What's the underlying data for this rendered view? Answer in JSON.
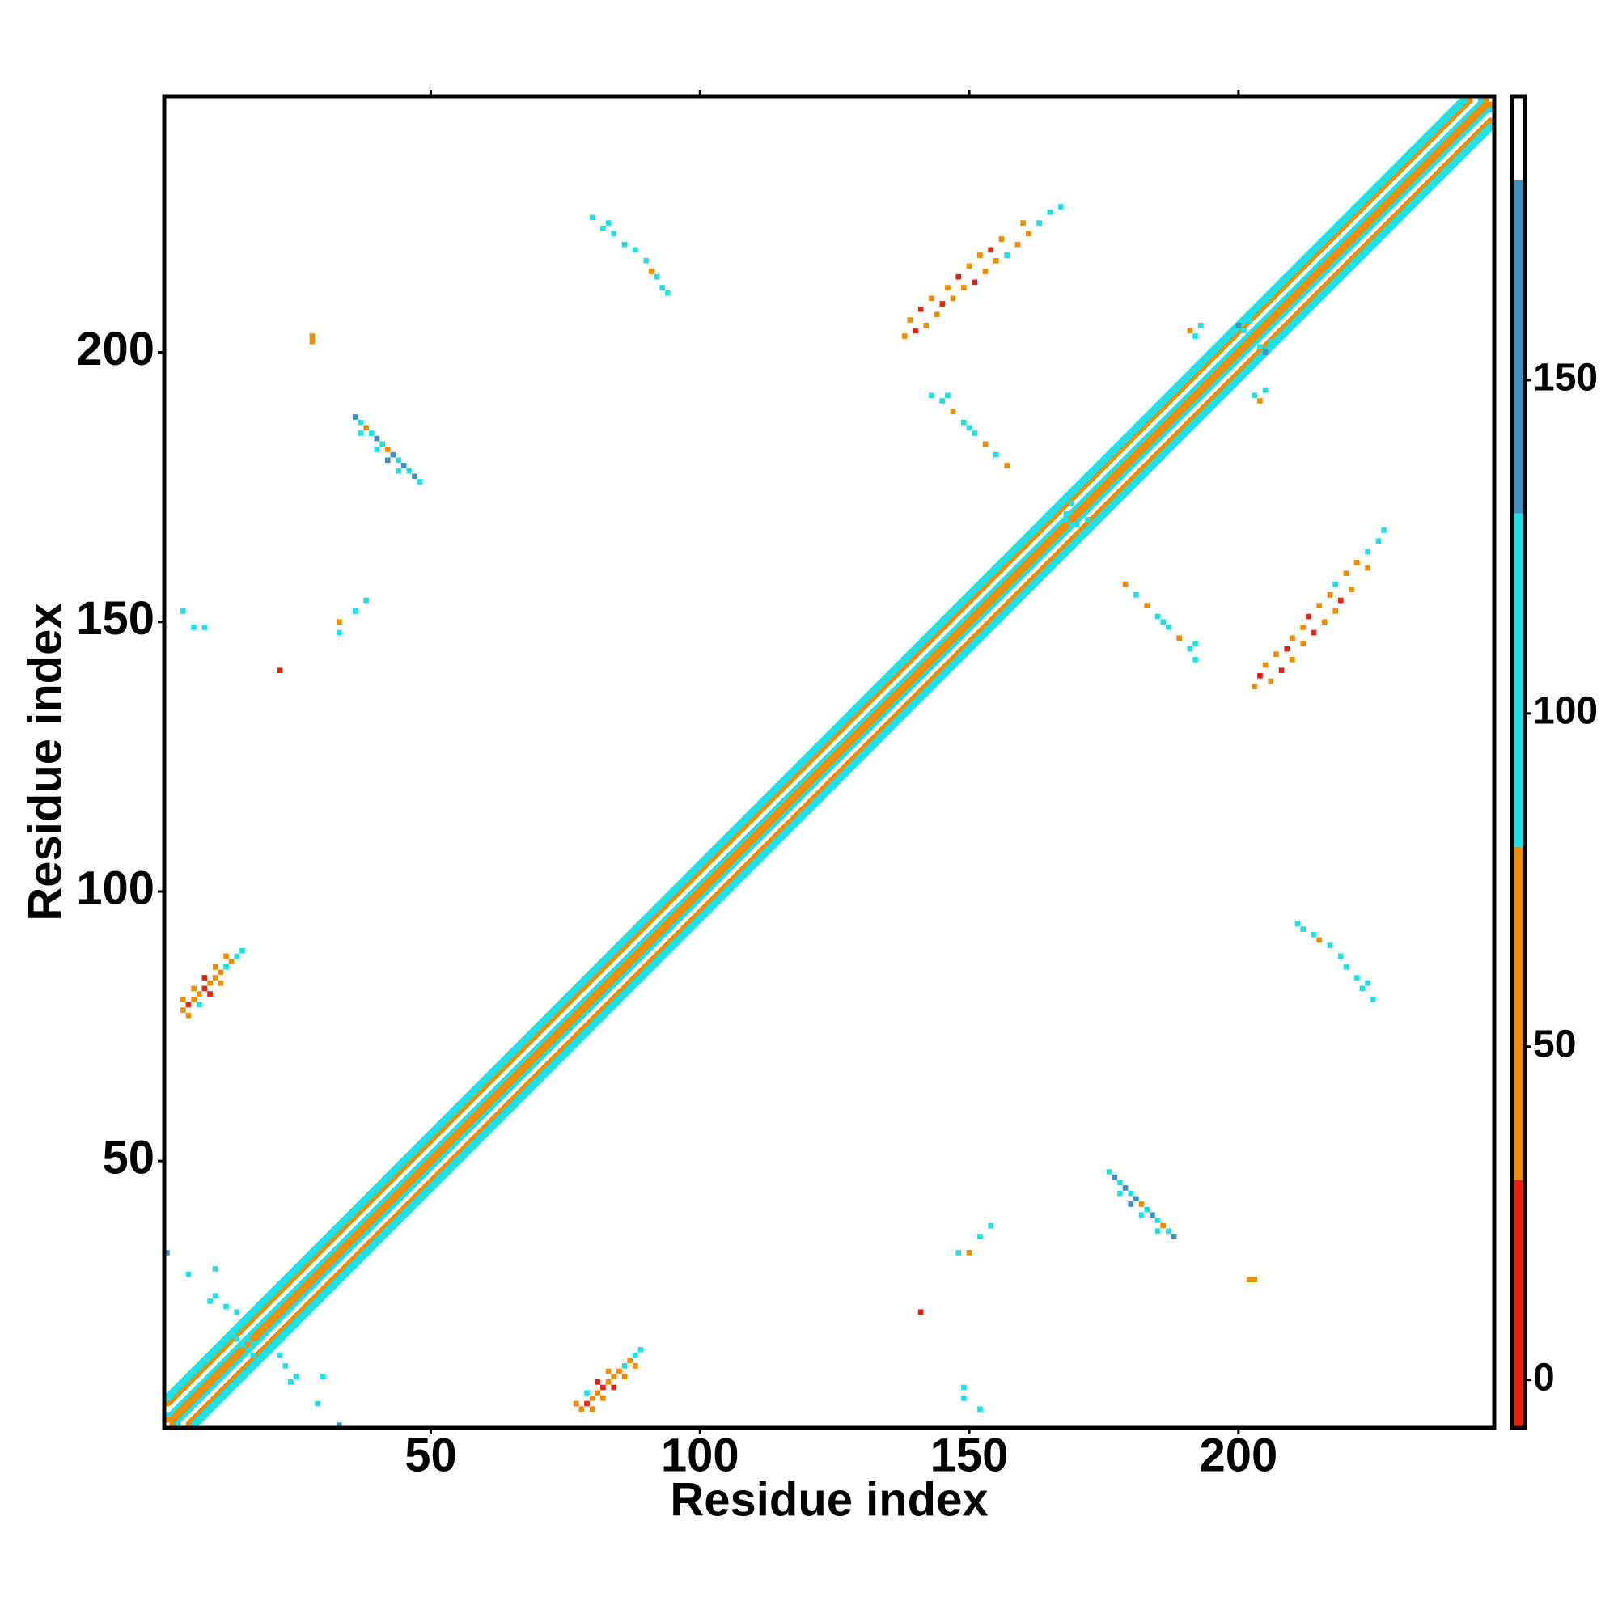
{
  "chart_data": {
    "type": "heatmap",
    "xlabel": "Residue index",
    "ylabel": "Residue index",
    "xlim": [
      0.5,
      247.5
    ],
    "ylim": [
      0.5,
      247.5
    ],
    "xticks": [
      50,
      100,
      150,
      200
    ],
    "yticks": [
      50,
      100,
      150,
      200
    ],
    "clim": [
      -7.2,
      192.6
    ],
    "cticks": [
      0,
      50,
      100,
      150
    ],
    "colorbar": [
      {
        "from": -7.2,
        "to": 30,
        "color": "#e8200c"
      },
      {
        "from": 30,
        "to": 80,
        "color": "#f08c00"
      },
      {
        "from": 80,
        "to": 130,
        "color": "#1ee0e6"
      },
      {
        "from": 130,
        "to": 180,
        "color": "#3e8fc4"
      },
      {
        "from": 180,
        "to": 192.6,
        "color": "#ffffff"
      }
    ],
    "symmetric": true,
    "diagonal": [
      {
        "offset": 0,
        "value": 185
      },
      {
        "offset": 1,
        "value": 50
      },
      {
        "offset": 2,
        "value": 100
      },
      {
        "offset": 3,
        "value": 185
      },
      {
        "offset": 4,
        "value": 50
      },
      {
        "offset": 5,
        "value": 100
      }
    ],
    "cells": [
      [
        4,
        78,
        50
      ],
      [
        5,
        79,
        15
      ],
      [
        6,
        80,
        50
      ],
      [
        7,
        81,
        50
      ],
      [
        8,
        82,
        15
      ],
      [
        9,
        83,
        50
      ],
      [
        10,
        84,
        50
      ],
      [
        11,
        85,
        50
      ],
      [
        12,
        86,
        100
      ],
      [
        13,
        87,
        50
      ],
      [
        14,
        88,
        100
      ],
      [
        15,
        89,
        100
      ],
      [
        4,
        80,
        50
      ],
      [
        6,
        82,
        50
      ],
      [
        8,
        84,
        15
      ],
      [
        10,
        86,
        50
      ],
      [
        12,
        88,
        50
      ],
      [
        5,
        77,
        50
      ],
      [
        7,
        79,
        100
      ],
      [
        9,
        81,
        15
      ],
      [
        11,
        83,
        50
      ],
      [
        36,
        188,
        150
      ],
      [
        37,
        187,
        100
      ],
      [
        38,
        186,
        50
      ],
      [
        39,
        185,
        100
      ],
      [
        40,
        184,
        150
      ],
      [
        41,
        183,
        100
      ],
      [
        42,
        182,
        50
      ],
      [
        43,
        181,
        150
      ],
      [
        44,
        180,
        100
      ],
      [
        45,
        179,
        150
      ],
      [
        46,
        178,
        100
      ],
      [
        47,
        177,
        150
      ],
      [
        48,
        176,
        100
      ],
      [
        37,
        185,
        100
      ],
      [
        40,
        182,
        100
      ],
      [
        42,
        180,
        150
      ],
      [
        44,
        178,
        100
      ],
      [
        80,
        225,
        100
      ],
      [
        82,
        223,
        100
      ],
      [
        84,
        222,
        100
      ],
      [
        86,
        220,
        100
      ],
      [
        88,
        219,
        100
      ],
      [
        90,
        217,
        100
      ],
      [
        92,
        214,
        100
      ],
      [
        93,
        212,
        100
      ],
      [
        94,
        211,
        100
      ],
      [
        83,
        224,
        100
      ],
      [
        91,
        215,
        50
      ],
      [
        138,
        203,
        50
      ],
      [
        140,
        204,
        15
      ],
      [
        142,
        205,
        50
      ],
      [
        144,
        207,
        50
      ],
      [
        145,
        209,
        15
      ],
      [
        147,
        210,
        50
      ],
      [
        149,
        212,
        50
      ],
      [
        151,
        213,
        15
      ],
      [
        153,
        215,
        50
      ],
      [
        155,
        217,
        50
      ],
      [
        157,
        218,
        100
      ],
      [
        159,
        220,
        50
      ],
      [
        161,
        222,
        50
      ],
      [
        163,
        224,
        100
      ],
      [
        165,
        226,
        100
      ],
      [
        167,
        227,
        100
      ],
      [
        139,
        206,
        50
      ],
      [
        141,
        208,
        15
      ],
      [
        143,
        210,
        50
      ],
      [
        146,
        212,
        50
      ],
      [
        148,
        214,
        15
      ],
      [
        150,
        216,
        50
      ],
      [
        152,
        218,
        50
      ],
      [
        154,
        219,
        15
      ],
      [
        156,
        221,
        50
      ],
      [
        160,
        224,
        50
      ],
      [
        143,
        192,
        100
      ],
      [
        145,
        191,
        100
      ],
      [
        147,
        189,
        50
      ],
      [
        149,
        187,
        100
      ],
      [
        151,
        185,
        100
      ],
      [
        153,
        183,
        50
      ],
      [
        155,
        181,
        100
      ],
      [
        157,
        179,
        50
      ],
      [
        146,
        192,
        100
      ],
      [
        150,
        186,
        100
      ],
      [
        28,
        203,
        50
      ],
      [
        28,
        202,
        50
      ],
      [
        4,
        152,
        100
      ],
      [
        6,
        149,
        100
      ],
      [
        8,
        149,
        100
      ],
      [
        33,
        150,
        50
      ],
      [
        33,
        148,
        100
      ],
      [
        36,
        152,
        100
      ],
      [
        38,
        154,
        100
      ],
      [
        22,
        141,
        15
      ],
      [
        1,
        33,
        150
      ],
      [
        9,
        24,
        100
      ],
      [
        10,
        25,
        100
      ],
      [
        12,
        23,
        100
      ],
      [
        14,
        22,
        100
      ],
      [
        14,
        17,
        100
      ],
      [
        15,
        16,
        100
      ],
      [
        17,
        16,
        100
      ],
      [
        10,
        30,
        100
      ],
      [
        5,
        29,
        100
      ],
      [
        200,
        205,
        150
      ],
      [
        201,
        204,
        100
      ],
      [
        202,
        206,
        100
      ],
      [
        203,
        192,
        100
      ],
      [
        204,
        191,
        50
      ],
      [
        205,
        193,
        100
      ],
      [
        168,
        170,
        100
      ],
      [
        169,
        168,
        100
      ],
      [
        171,
        166,
        100
      ],
      [
        172,
        169,
        100
      ]
    ]
  }
}
